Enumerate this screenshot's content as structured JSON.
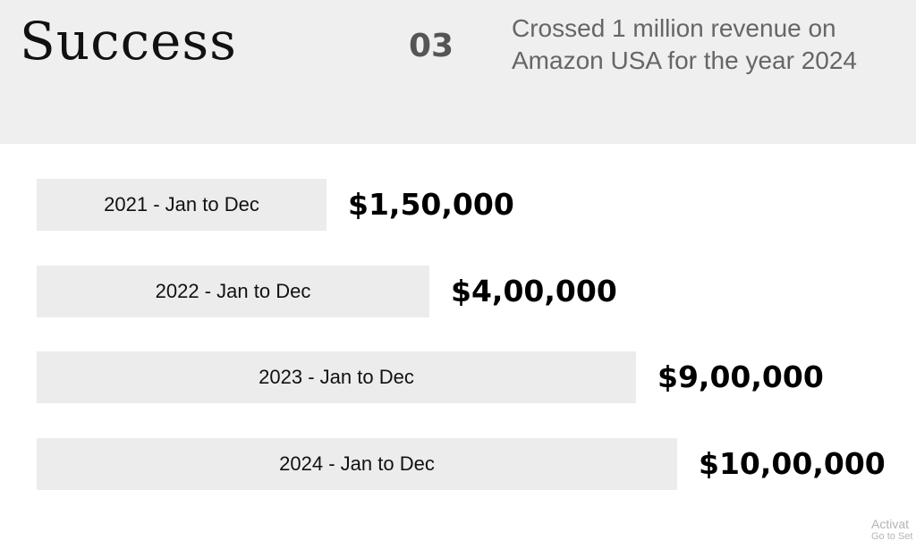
{
  "header": {
    "title": "Success",
    "number": "03",
    "description": "Crossed 1 million revenue on Amazon USA for the year 2024"
  },
  "chart_data": {
    "type": "bar",
    "orientation": "horizontal",
    "categories": [
      "2021 - Jan to Dec",
      "2022 - Jan to Dec",
      "2023 - Jan to Dec",
      "2024 - Jan to Dec"
    ],
    "values": [
      150000,
      400000,
      900000,
      1000000
    ],
    "value_labels": [
      "$1,50,000",
      "$4,00,000",
      "$9,00,000",
      "$10,00,000"
    ],
    "bar_color": "#ececec",
    "grid": false,
    "legend": "none"
  },
  "watermark": {
    "line1": "Activat",
    "line2": "Go to Set"
  }
}
